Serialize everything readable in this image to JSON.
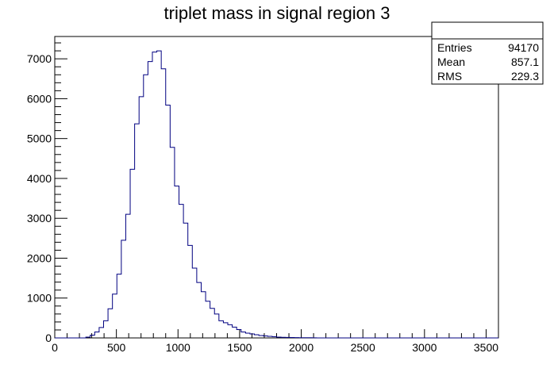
{
  "chart_data": {
    "type": "histogram",
    "title": "triplet mass in signal region 3",
    "xlabel": "",
    "ylabel": "",
    "xlim": [
      0,
      3600
    ],
    "ylim": [
      0,
      7560
    ],
    "x_ticks": [
      0,
      500,
      1000,
      1500,
      2000,
      2500,
      3000,
      3500
    ],
    "y_ticks": [
      0,
      1000,
      2000,
      3000,
      4000,
      5000,
      6000,
      7000
    ],
    "bin_width": 36,
    "bin_low_edges": [
      252,
      288,
      324,
      360,
      396,
      432,
      468,
      504,
      540,
      576,
      612,
      648,
      684,
      720,
      756,
      792,
      828,
      864,
      900,
      936,
      972,
      1008,
      1044,
      1080,
      1116,
      1152,
      1188,
      1224,
      1260,
      1296,
      1332,
      1368,
      1404,
      1440,
      1476,
      1512,
      1548,
      1584,
      1620,
      1656,
      1692,
      1728,
      1764,
      1800,
      1836,
      1872,
      1908,
      1944,
      1980,
      2016,
      2052,
      2088
    ],
    "values": [
      20,
      70,
      150,
      260,
      430,
      730,
      1100,
      1600,
      2450,
      3100,
      4230,
      5370,
      6050,
      6600,
      6930,
      7170,
      7200,
      6750,
      5840,
      4780,
      3810,
      3350,
      2880,
      2320,
      1750,
      1390,
      1160,
      920,
      740,
      600,
      430,
      380,
      330,
      270,
      210,
      150,
      120,
      100,
      80,
      60,
      50,
      40,
      30,
      20,
      15,
      12,
      10,
      8,
      6,
      5,
      4,
      3
    ],
    "line_color": "#000080",
    "grid": false,
    "stats_box": {
      "placement": "top-right",
      "header": "",
      "rows": [
        {
          "label": "Entries",
          "value": "94170"
        },
        {
          "label": "Mean",
          "value": "857.1"
        },
        {
          "label": "RMS",
          "value": "229.3"
        }
      ]
    }
  }
}
